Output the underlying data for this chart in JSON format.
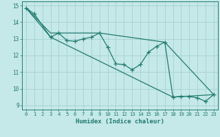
{
  "xlabel": "Humidex (Indice chaleur)",
  "xlim": [
    -0.5,
    23.5
  ],
  "ylim": [
    8.75,
    15.25
  ],
  "xticks": [
    0,
    1,
    2,
    3,
    4,
    5,
    6,
    7,
    8,
    9,
    10,
    11,
    12,
    13,
    14,
    15,
    16,
    17,
    18,
    19,
    20,
    21,
    22,
    23
  ],
  "yticks": [
    9,
    10,
    11,
    12,
    13,
    14,
    15
  ],
  "bg_color": "#c5e8e8",
  "grid_color": "#aad4d4",
  "line_color": "#1e7a6e",
  "line1": {
    "x": [
      0,
      1,
      3,
      4,
      5,
      6,
      7,
      8,
      9,
      10,
      11,
      12,
      13,
      14,
      15,
      16,
      17,
      18,
      19,
      20,
      21,
      22,
      23
    ],
    "y": [
      14.85,
      14.5,
      13.1,
      13.35,
      12.9,
      12.85,
      13.0,
      13.1,
      13.35,
      12.5,
      11.5,
      11.45,
      11.15,
      11.45,
      12.2,
      12.55,
      12.8,
      9.5,
      9.55,
      9.55,
      9.45,
      9.25,
      9.65
    ]
  },
  "line2": {
    "x": [
      0,
      3,
      18,
      23
    ],
    "y": [
      14.85,
      13.1,
      9.5,
      9.65
    ]
  },
  "line3": {
    "x": [
      0,
      3,
      9,
      17,
      23
    ],
    "y": [
      14.85,
      13.35,
      13.35,
      12.8,
      9.65
    ]
  }
}
